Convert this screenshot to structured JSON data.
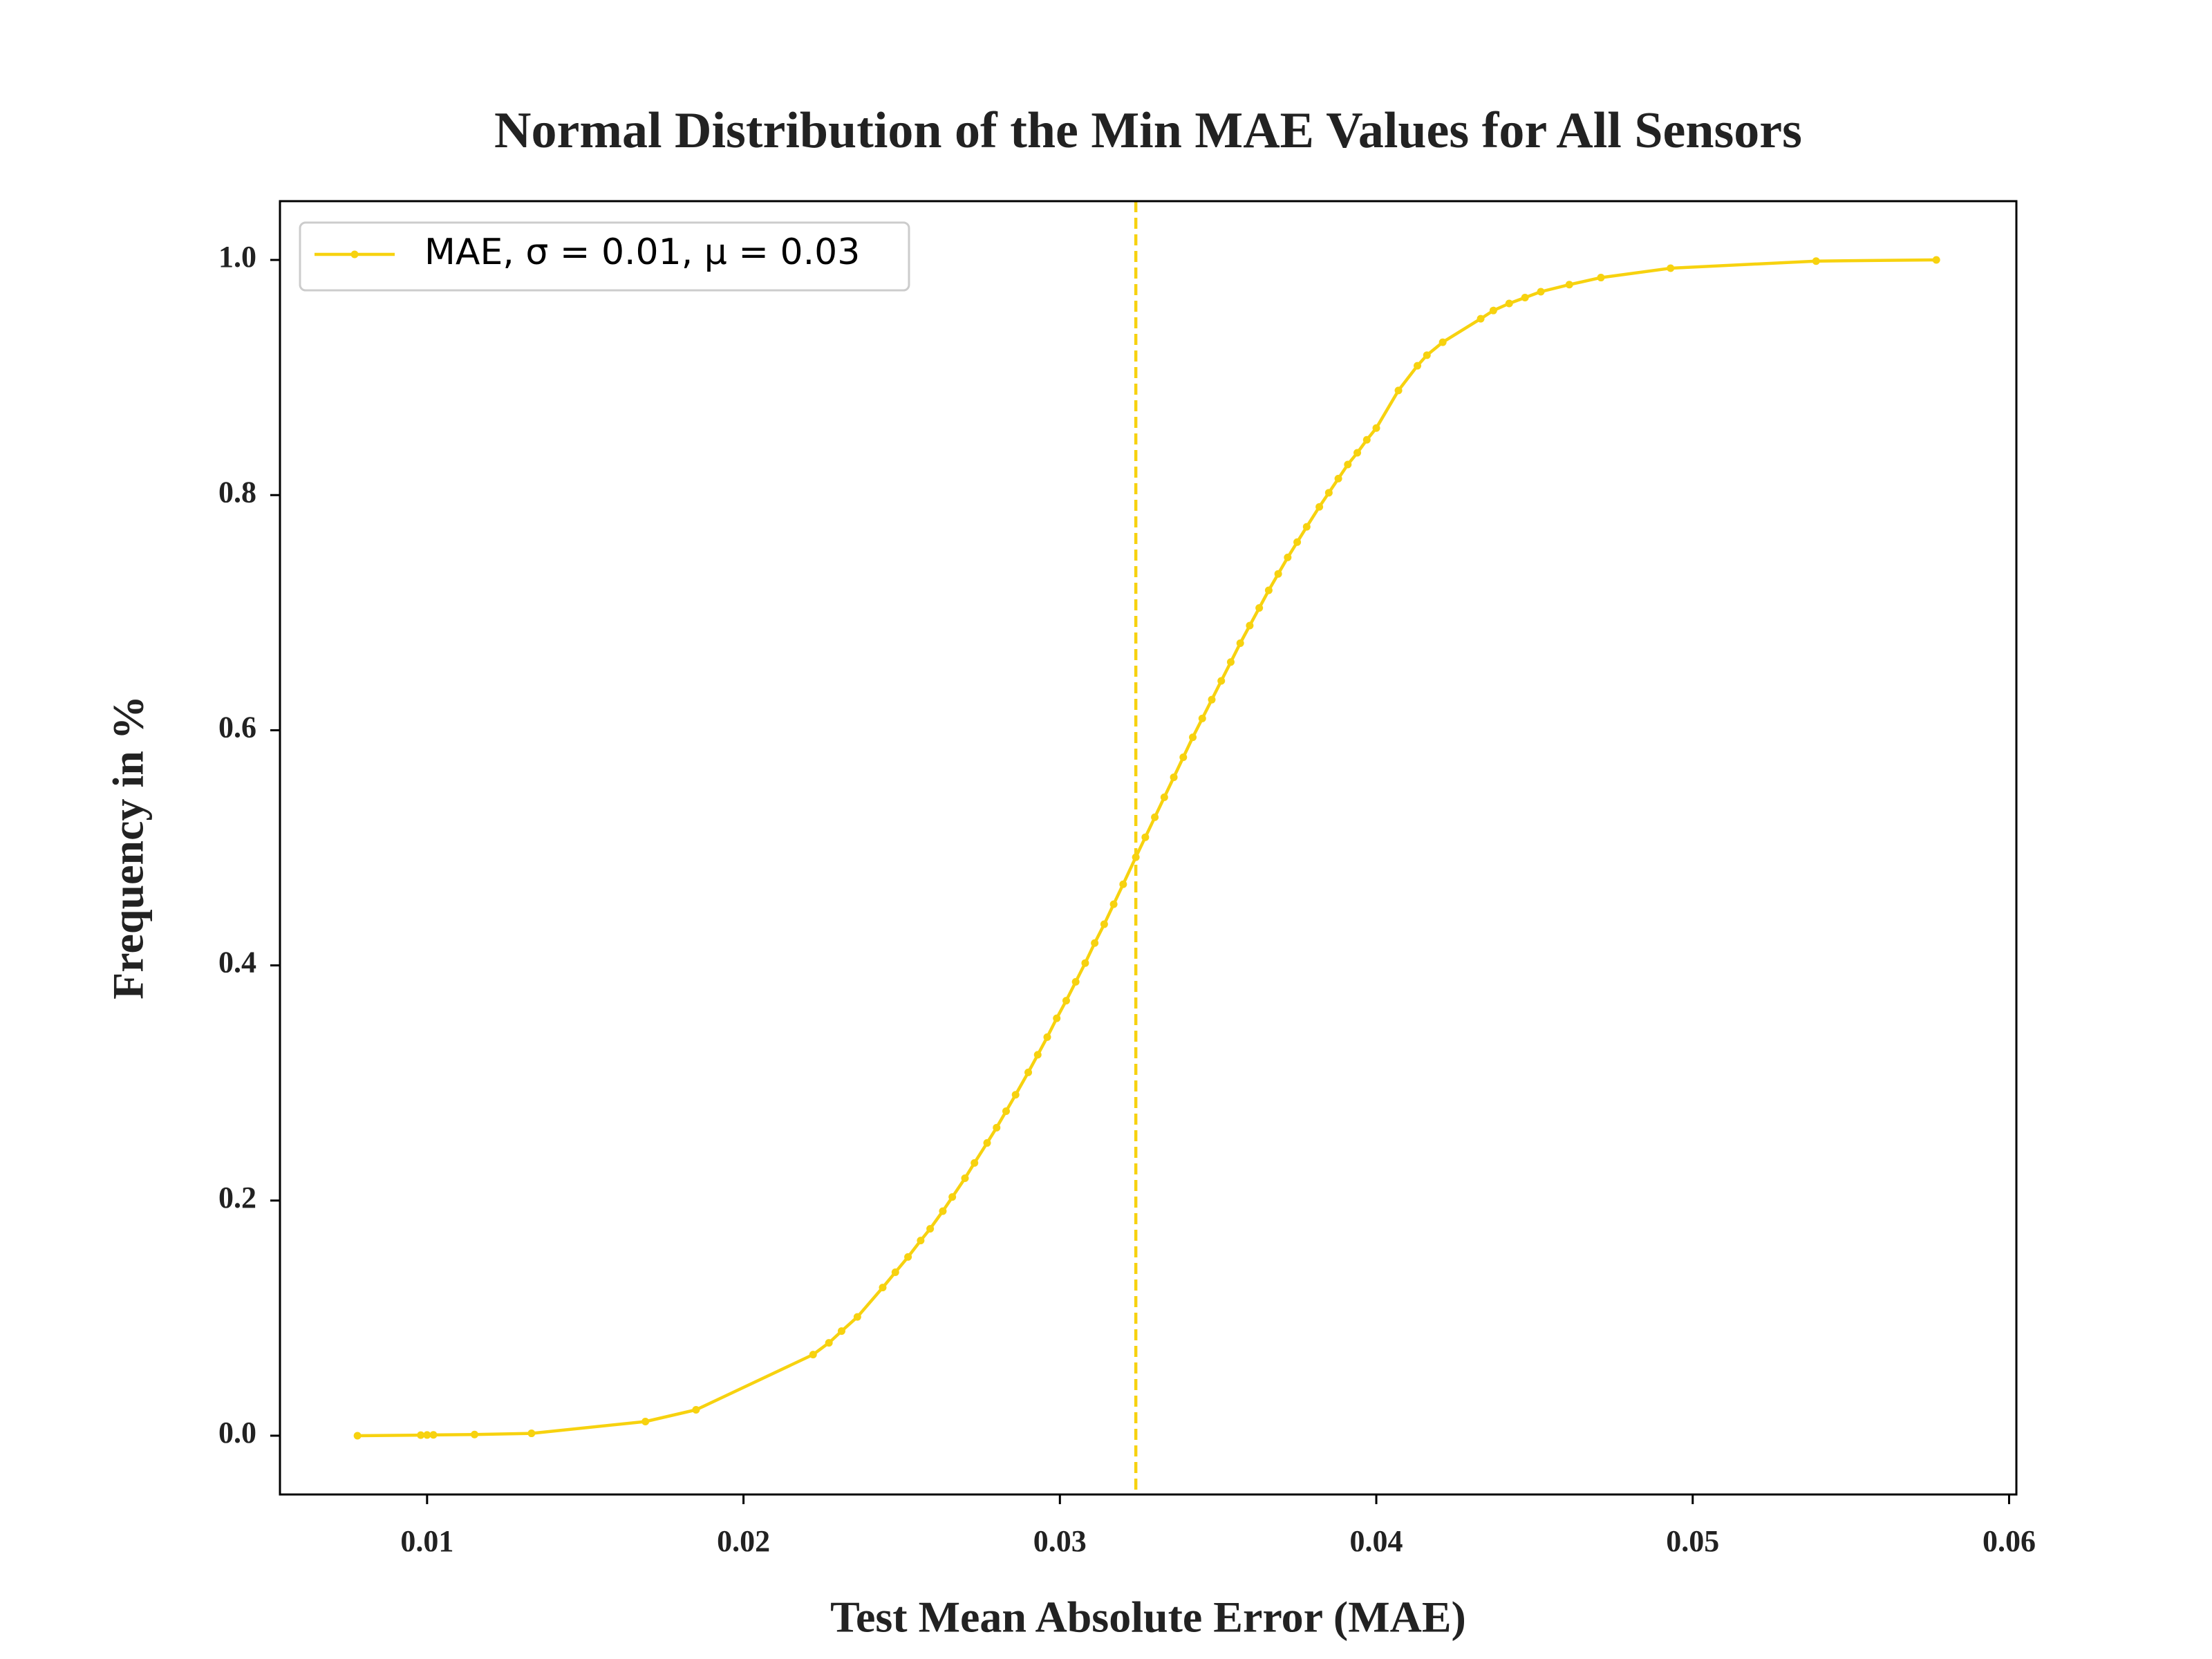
{
  "chart_data": {
    "type": "line",
    "title": "Normal Distribution of the Min MAE Values for All Sensors",
    "xlabel": "Test Mean Absolute Error (MAE)",
    "ylabel": "Frequency in %",
    "x": [
      0.0078,
      0.0098,
      0.01,
      0.0102,
      0.0115,
      0.0133,
      0.0169,
      0.0185,
      0.0222,
      0.0227,
      0.0231,
      0.0236,
      0.0244,
      0.0248,
      0.0252,
      0.0256,
      0.0259,
      0.0263,
      0.0266,
      0.027,
      0.0273,
      0.0277,
      0.028,
      0.0283,
      0.0286,
      0.029,
      0.0293,
      0.0296,
      0.0299,
      0.0302,
      0.0305,
      0.0308,
      0.0311,
      0.0314,
      0.0317,
      0.032,
      0.0324,
      0.0327,
      0.033,
      0.0333,
      0.0336,
      0.0339,
      0.0342,
      0.0345,
      0.0348,
      0.0351,
      0.0354,
      0.0357,
      0.036,
      0.0363,
      0.0366,
      0.0369,
      0.0372,
      0.0375,
      0.0378,
      0.0382,
      0.0385,
      0.0388,
      0.0391,
      0.0394,
      0.0397,
      0.04,
      0.0407,
      0.0413,
      0.0416,
      0.0421,
      0.0433,
      0.0437,
      0.0442,
      0.0447,
      0.0452,
      0.0461,
      0.0471,
      0.0493,
      0.0539,
      0.0577
    ],
    "series": [
      {
        "name": "MAE, σ = 0.01, μ = 0.03",
        "color": "#f7d20f",
        "values": [
          0.0,
          0.0005,
          0.0006,
          0.0007,
          0.001,
          0.002,
          0.012,
          0.022,
          0.069,
          0.079,
          0.089,
          0.101,
          0.126,
          0.139,
          0.152,
          0.166,
          0.176,
          0.191,
          0.203,
          0.219,
          0.232,
          0.249,
          0.262,
          0.276,
          0.29,
          0.309,
          0.324,
          0.339,
          0.355,
          0.37,
          0.386,
          0.402,
          0.419,
          0.435,
          0.452,
          0.469,
          0.492,
          0.509,
          0.526,
          0.543,
          0.56,
          0.577,
          0.594,
          0.61,
          0.626,
          0.642,
          0.658,
          0.674,
          0.689,
          0.704,
          0.719,
          0.733,
          0.747,
          0.76,
          0.773,
          0.79,
          0.802,
          0.814,
          0.826,
          0.836,
          0.847,
          0.857,
          0.889,
          0.91,
          0.919,
          0.93,
          0.95,
          0.957,
          0.963,
          0.968,
          0.973,
          0.979,
          0.985,
          0.993,
          0.999,
          1.0
        ]
      }
    ],
    "mean_line": 0.0324,
    "xlim": [
      0.00535,
      0.06023
    ],
    "ylim": [
      -0.05,
      1.05
    ],
    "xticks": [
      0.01,
      0.02,
      0.03,
      0.04,
      0.05,
      0.06
    ],
    "yticks": [
      {
        "value": 0,
        "label": "0.0"
      },
      0.2,
      0.4,
      0.6,
      0.8,
      {
        "value": 1,
        "label": "1.0"
      }
    ],
    "legend": "upper left",
    "grid": false
  }
}
